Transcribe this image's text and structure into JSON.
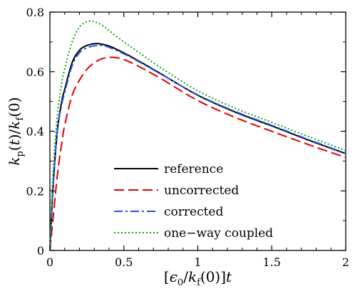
{
  "chart_data": {
    "type": "line",
    "title": "",
    "xlabel": "[ϵ₀/k_f(0)]t",
    "ylabel": "k_p(t)/k_f(0)",
    "xlim": [
      0,
      2
    ],
    "ylim": [
      0,
      0.8
    ],
    "xticks": [
      0,
      0.5,
      1,
      1.5,
      2
    ],
    "yticks": [
      0,
      0.2,
      0.4,
      0.6,
      0.8
    ],
    "x_tick_labels": [
      "0",
      "0.5",
      "1",
      "1.5",
      "2"
    ],
    "y_tick_labels": [
      "0",
      "0.2",
      "0.4",
      "0.6",
      "0.8"
    ],
    "grid": false,
    "legend_position": "lower-right",
    "series": [
      {
        "name": "reference",
        "color": "#000000",
        "style": "solid",
        "x": [
          0,
          0.02,
          0.05,
          0.08,
          0.1,
          0.15,
          0.2,
          0.25,
          0.3,
          0.33,
          0.4,
          0.5,
          0.6,
          0.75,
          1.0,
          1.25,
          1.5,
          1.75,
          2.0
        ],
        "y": [
          0,
          0.2,
          0.4,
          0.5,
          0.54,
          0.63,
          0.672,
          0.688,
          0.694,
          0.694,
          0.686,
          0.663,
          0.636,
          0.593,
          0.521,
          0.465,
          0.418,
          0.37,
          0.325
        ]
      },
      {
        "name": "uncorrected",
        "color": "#e00000",
        "style": "dashed",
        "x": [
          0,
          0.02,
          0.05,
          0.08,
          0.1,
          0.15,
          0.2,
          0.25,
          0.3,
          0.35,
          0.4,
          0.45,
          0.5,
          0.6,
          0.75,
          1.0,
          1.25,
          1.5,
          1.75,
          2.0
        ],
        "y": [
          0,
          0.1,
          0.25,
          0.36,
          0.42,
          0.52,
          0.572,
          0.608,
          0.63,
          0.643,
          0.648,
          0.647,
          0.641,
          0.618,
          0.577,
          0.503,
          0.447,
          0.4,
          0.355,
          0.312
        ]
      },
      {
        "name": "corrected",
        "color": "#2850e0",
        "style": "dashdot",
        "x": [
          0,
          0.02,
          0.05,
          0.08,
          0.1,
          0.15,
          0.2,
          0.25,
          0.3,
          0.35,
          0.4,
          0.5,
          0.6,
          0.75,
          1.0,
          1.25,
          1.5,
          1.75,
          2.0
        ],
        "y": [
          0,
          0.2,
          0.4,
          0.49,
          0.53,
          0.62,
          0.664,
          0.68,
          0.687,
          0.688,
          0.682,
          0.66,
          0.634,
          0.592,
          0.522,
          0.467,
          0.42,
          0.372,
          0.326
        ]
      },
      {
        "name": "one−way coupled",
        "color": "#10a010",
        "style": "dotted",
        "x": [
          0,
          0.02,
          0.05,
          0.08,
          0.1,
          0.15,
          0.2,
          0.25,
          0.28,
          0.3,
          0.35,
          0.4,
          0.5,
          0.6,
          0.75,
          1.0,
          1.25,
          1.5,
          1.75,
          2.0
        ],
        "y": [
          0,
          0.25,
          0.45,
          0.56,
          0.61,
          0.7,
          0.75,
          0.768,
          0.77,
          0.768,
          0.757,
          0.738,
          0.7,
          0.665,
          0.613,
          0.536,
          0.478,
          0.43,
          0.382,
          0.335
        ]
      }
    ]
  }
}
